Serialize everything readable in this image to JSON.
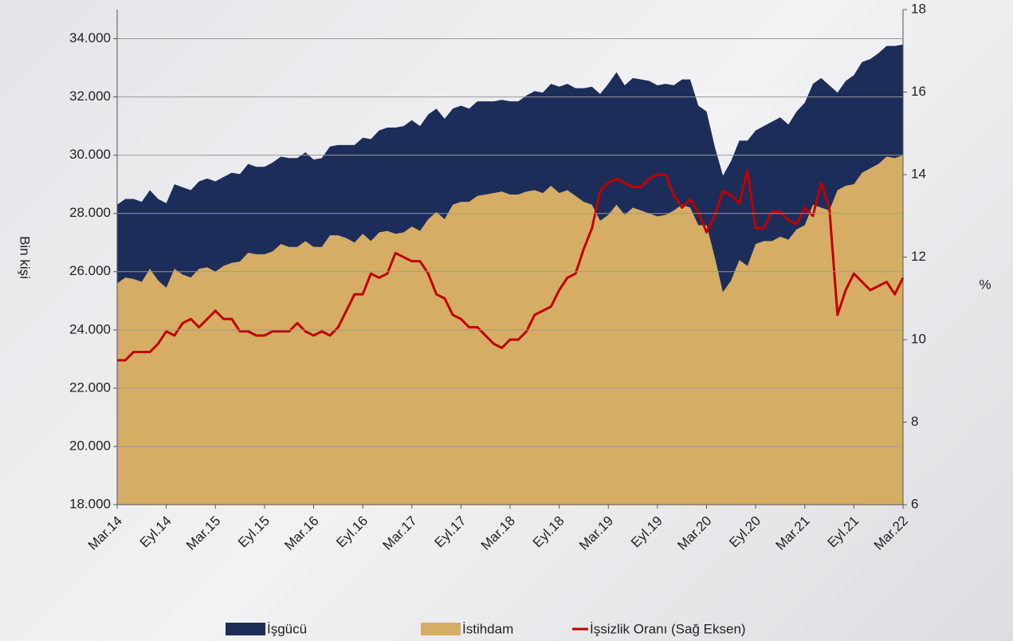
{
  "chart_data": {
    "type": "area-line",
    "y_axis_label": "Bin kişi",
    "y2_axis_label": "%",
    "categories": [
      "Mar.14",
      null,
      null,
      null,
      null,
      null,
      "Eyl.14",
      null,
      null,
      null,
      null,
      null,
      "Mar.15",
      null,
      null,
      null,
      null,
      null,
      "Eyl.15",
      null,
      null,
      null,
      null,
      null,
      "Mar.16",
      null,
      null,
      null,
      null,
      null,
      "Eyl.16",
      null,
      null,
      null,
      null,
      null,
      "Mar.17",
      null,
      null,
      null,
      null,
      null,
      "Eyl.17",
      null,
      null,
      null,
      null,
      null,
      "Mar.18",
      null,
      null,
      null,
      null,
      null,
      "Eyl.18",
      null,
      null,
      null,
      null,
      null,
      "Mar.19",
      null,
      null,
      null,
      null,
      null,
      "Eyl.19",
      null,
      null,
      null,
      null,
      null,
      "Mar.20",
      null,
      null,
      null,
      null,
      null,
      "Eyl.20",
      null,
      null,
      null,
      null,
      null,
      "Mar.21",
      null,
      null,
      null,
      null,
      null,
      "Eyl.21",
      null,
      null,
      null,
      null,
      null,
      "Mar.22"
    ],
    "series": [
      {
        "name": "İşgücü",
        "kind": "area",
        "color": "#1c2d5a",
        "values": [
          28300,
          28500,
          28500,
          28400,
          28800,
          28500,
          28350,
          29000,
          28900,
          28800,
          29100,
          29200,
          29100,
          29250,
          29400,
          29350,
          29700,
          29600,
          29600,
          29750,
          29950,
          29900,
          29900,
          30100,
          29850,
          29900,
          30300,
          30350,
          30350,
          30350,
          30600,
          30550,
          30850,
          30950,
          30950,
          31000,
          31200,
          31000,
          31400,
          31600,
          31250,
          31600,
          31700,
          31600,
          31850,
          31850,
          31850,
          31900,
          31850,
          31850,
          32050,
          32200,
          32150,
          32450,
          32350,
          32450,
          32300,
          32300,
          32350,
          32100,
          32450,
          32850,
          32400,
          32650,
          32600,
          32550,
          32400,
          32450,
          32400,
          32600,
          32600,
          31700,
          31500,
          30300,
          29300,
          29800,
          30500,
          30500,
          30850,
          31000,
          31150,
          31300,
          31050,
          31500,
          31800,
          32450,
          32650,
          32400,
          32150,
          32550,
          32750,
          33200,
          33300,
          33500,
          33750,
          33750,
          33800
        ]
      },
      {
        "name": "İstihdam",
        "kind": "area",
        "color": "#d6ad65",
        "values": [
          25600,
          25800,
          25750,
          25650,
          26100,
          25700,
          25450,
          26100,
          25900,
          25800,
          26100,
          26150,
          26000,
          26200,
          26300,
          26350,
          26650,
          26600,
          26600,
          26700,
          26950,
          26850,
          26850,
          27050,
          26850,
          26850,
          27250,
          27250,
          27150,
          27000,
          27300,
          27050,
          27350,
          27400,
          27300,
          27350,
          27550,
          27400,
          27800,
          28050,
          27800,
          28300,
          28400,
          28400,
          28600,
          28650,
          28700,
          28750,
          28650,
          28650,
          28750,
          28800,
          28700,
          28950,
          28700,
          28800,
          28600,
          28400,
          28300,
          27750,
          27950,
          28300,
          27950,
          28200,
          28100,
          28000,
          27900,
          27950,
          28100,
          28300,
          28200,
          27600,
          27600,
          26500,
          25300,
          25700,
          26400,
          26200,
          26950,
          27050,
          27050,
          27200,
          27100,
          27450,
          27600,
          28300,
          28200,
          28100,
          28800,
          28950,
          29000,
          29400,
          29550,
          29700,
          29950,
          29900,
          30000
        ]
      },
      {
        "name": "İşsizlik Oranı (Sağ Eksen)",
        "kind": "line",
        "axis": "y2",
        "color": "#c00000",
        "values": [
          9.5,
          9.5,
          9.7,
          9.7,
          9.7,
          9.9,
          10.2,
          10.1,
          10.4,
          10.5,
          10.3,
          10.5,
          10.7,
          10.5,
          10.5,
          10.2,
          10.2,
          10.1,
          10.1,
          10.2,
          10.2,
          10.2,
          10.4,
          10.2,
          10.1,
          10.2,
          10.1,
          10.3,
          10.7,
          11.1,
          11.1,
          11.6,
          11.5,
          11.6,
          12.1,
          12.0,
          11.9,
          11.9,
          11.6,
          11.1,
          11.0,
          10.6,
          10.5,
          10.3,
          10.3,
          10.1,
          9.9,
          9.8,
          10.0,
          10.0,
          10.2,
          10.6,
          10.7,
          10.8,
          11.2,
          11.5,
          11.6,
          12.2,
          12.7,
          13.6,
          13.8,
          13.9,
          13.8,
          13.7,
          13.7,
          13.9,
          14.0,
          14.0,
          13.5,
          13.2,
          13.4,
          13.1,
          12.6,
          13.0,
          13.6,
          13.5,
          13.3,
          14.1,
          12.7,
          12.7,
          13.1,
          13.1,
          12.9,
          12.8,
          13.2,
          13.0,
          13.8,
          13.2,
          10.6,
          11.2,
          11.6,
          11.4,
          11.2,
          11.3,
          11.4,
          11.1,
          11.5
        ]
      }
    ],
    "ylim": [
      18000,
      35000
    ],
    "yticks": [
      {
        "value": 18000,
        "label": "18.000"
      },
      {
        "value": 20000,
        "label": "20.000"
      },
      {
        "value": 22000,
        "label": "22.000"
      },
      {
        "value": 24000,
        "label": "24.000"
      },
      {
        "value": 26000,
        "label": "26.000"
      },
      {
        "value": 28000,
        "label": "28.000"
      },
      {
        "value": 30000,
        "label": "30.000"
      },
      {
        "value": 32000,
        "label": "32.000"
      },
      {
        "value": 34000,
        "label": "34.000"
      }
    ],
    "y2lim": [
      6,
      18
    ],
    "y2ticks": [
      6,
      8,
      10,
      12,
      14,
      16,
      18
    ],
    "grid": true,
    "legend": "bottom"
  }
}
